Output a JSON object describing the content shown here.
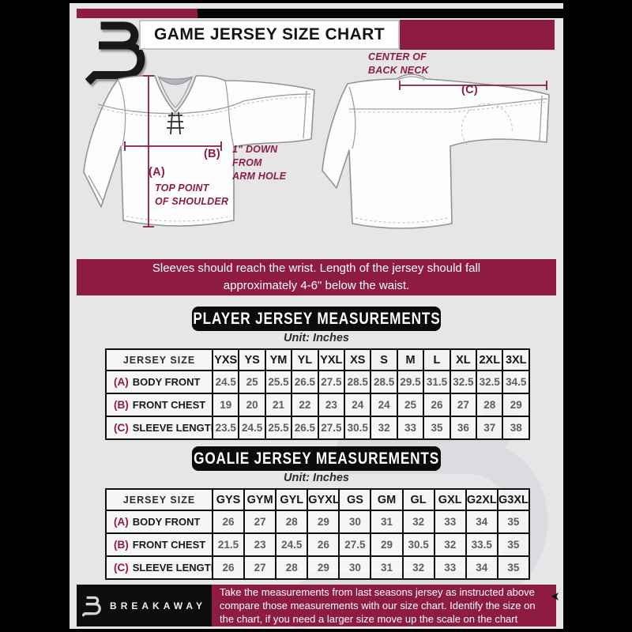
{
  "header": {
    "title": "GAME JERSEY SIZE CHART"
  },
  "diagram": {
    "center_back_neck": "CENTER OF\nBACK NECK",
    "c_label": "(C)",
    "b_label": "(B)",
    "b_caption": "1\" DOWN\nFROM\nARM HOLE",
    "a_label": "(A)",
    "a_caption": "TOP POINT\nOF SHOULDER"
  },
  "notice": "Sleeves should reach the wrist. Length of the jersey should fall approximately 4-6\" below the waist.",
  "player_section": {
    "title": "PLAYER JERSEY MEASUREMENTS",
    "unit": "Unit: Inches",
    "table": {
      "header": [
        "JERSEY SIZE",
        "YXS",
        "YS",
        "YM",
        "YL",
        "YXL",
        "XS",
        "S",
        "M",
        "L",
        "XL",
        "2XL",
        "3XL"
      ],
      "rows": [
        {
          "key": "(A)",
          "label": "BODY FRONT",
          "values": [
            "24.5",
            "25",
            "25.5",
            "26.5",
            "27.5",
            "28.5",
            "28.5",
            "29.5",
            "31.5",
            "32.5",
            "32.5",
            "34.5"
          ]
        },
        {
          "key": "(B)",
          "label": "FRONT CHEST",
          "values": [
            "19",
            "20",
            "21",
            "22",
            "23",
            "24",
            "24",
            "25",
            "26",
            "27",
            "28",
            "29"
          ]
        },
        {
          "key": "(C)",
          "label": "SLEEVE LENGTH",
          "values": [
            "23.5",
            "24.5",
            "25.5",
            "26.5",
            "27.5",
            "30.5",
            "32",
            "33",
            "35",
            "36",
            "37",
            "38"
          ]
        }
      ]
    }
  },
  "goalie_section": {
    "title": "GOALIE JERSEY MEASUREMENTS",
    "unit": "Unit: Inches",
    "table": {
      "header": [
        "JERSEY SIZE",
        "GYS",
        "GYM",
        "GYL",
        "GYXL",
        "GS",
        "GM",
        "GL",
        "GXL",
        "G2XL",
        "G3XL"
      ],
      "rows": [
        {
          "key": "(A)",
          "label": "BODY FRONT",
          "values": [
            "26",
            "27",
            "28",
            "29",
            "30",
            "31",
            "32",
            "33",
            "34",
            "35"
          ]
        },
        {
          "key": "(B)",
          "label": "FRONT CHEST",
          "values": [
            "21.5",
            "23",
            "24.5",
            "26",
            "27.5",
            "29",
            "30.5",
            "32",
            "33.5",
            "35"
          ]
        },
        {
          "key": "(C)",
          "label": "SLEEVE LENGTH",
          "values": [
            "26",
            "27",
            "28",
            "29",
            "30",
            "31",
            "32",
            "33",
            "34",
            "35"
          ]
        }
      ]
    }
  },
  "footer": {
    "brand": "BREAKAWAY",
    "note": "Take the measurements from last seasons jersey as instructed above compare those measurements  with our size chart. Identify the size on the chart, if you need a larger size move up the scale on the chart"
  },
  "colors": {
    "maroon": "#8e1c41",
    "black": "#0c0c0c",
    "background": "#e6e6e8"
  }
}
